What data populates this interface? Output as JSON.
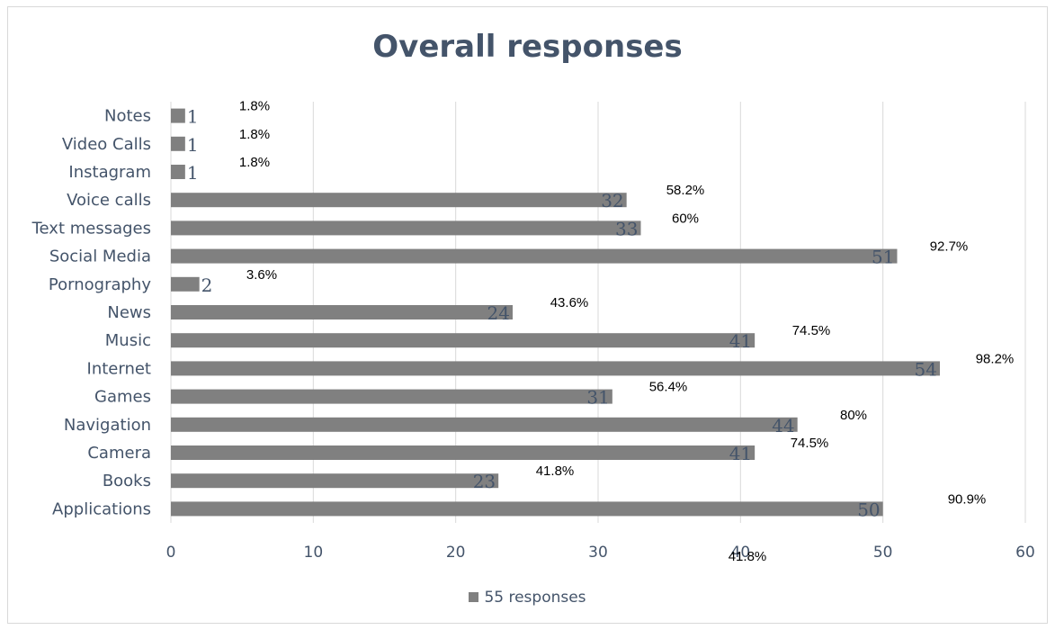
{
  "chart_data": {
    "type": "bar",
    "orientation": "horizontal",
    "title": "Overall responses",
    "categories": [
      "Notes",
      "Video Calls",
      "Instagram",
      "Voice calls",
      "Text messages",
      "Social Media",
      "Pornography",
      "News",
      "Music",
      "Internet ",
      "Games",
      "Navigation",
      "Camera",
      "Books",
      "Applications"
    ],
    "series": [
      {
        "name": "55 responses",
        "values": [
          1,
          1,
          1,
          32,
          33,
          51,
          2,
          24,
          41,
          54,
          31,
          44,
          41,
          23,
          50
        ],
        "color": "#808080"
      }
    ],
    "percent_labels": [
      "1.8%",
      "1.8%",
      "1.8%",
      "58.2%",
      "60%",
      "92.7%",
      "3.6%",
      "43.6%",
      "74.5%",
      "98.2%",
      "56.4%",
      "80%",
      "74.5%",
      "41.8%",
      "90.9%"
    ],
    "stray_labels": [
      "41.8%"
    ],
    "x_ticks": [
      0,
      10,
      20,
      30,
      40,
      50,
      60
    ],
    "xlim": [
      0,
      60
    ],
    "grid": true,
    "legend": "bottom"
  }
}
